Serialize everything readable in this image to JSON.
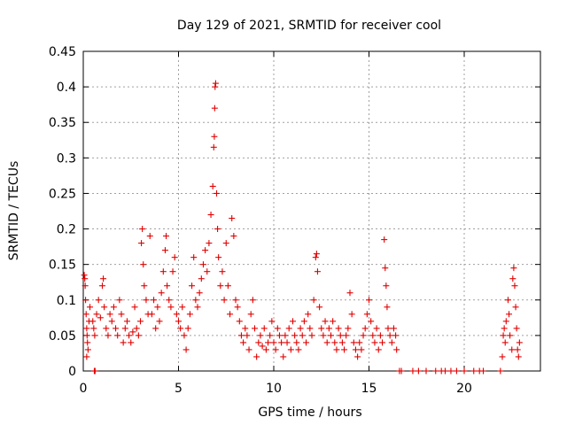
{
  "chart_data": {
    "type": "scatter",
    "title": "Day 129 of 2021, SRMTID for receiver cool",
    "xlabel": "GPS time / hours",
    "ylabel": "SRMTID / TECUs",
    "xlim": [
      0,
      24
    ],
    "ylim": [
      0,
      0.45
    ],
    "xticks": [
      0,
      5,
      10,
      15,
      20
    ],
    "xtick_labels": [
      "0",
      "5",
      "10",
      "15",
      "20"
    ],
    "yticks": [
      0,
      0.05,
      0.1,
      0.15,
      0.2,
      0.25,
      0.3,
      0.35,
      0.4,
      0.45
    ],
    "ytick_labels": [
      "0",
      "0.05",
      "0.1",
      "0.15",
      "0.2",
      "0.25",
      "0.3",
      "0.35",
      "0.4",
      "0.45"
    ],
    "grid": true,
    "marker": "+",
    "marker_color": "#e00000",
    "series": [
      {
        "name": "SRMTID",
        "points": [
          [
            0.05,
            0.135
          ],
          [
            0.08,
            0.13
          ],
          [
            0.1,
            0.12
          ],
          [
            0.12,
            0.1
          ],
          [
            0.15,
            0.08
          ],
          [
            0.18,
            0.06
          ],
          [
            0.2,
            0.05
          ],
          [
            0.22,
            0.04
          ],
          [
            0.25,
            0.03
          ],
          [
            0.18,
            0.02
          ],
          [
            0.3,
            0.07
          ],
          [
            0.35,
            0.09
          ],
          [
            0.5,
            0.07
          ],
          [
            0.55,
            0.06
          ],
          [
            0.6,
            0.05
          ],
          [
            0.58,
            0.0
          ],
          [
            0.62,
            0.0
          ],
          [
            0.7,
            0.08
          ],
          [
            0.8,
            0.1
          ],
          [
            0.9,
            0.075
          ],
          [
            1.0,
            0.12
          ],
          [
            1.05,
            0.13
          ],
          [
            1.1,
            0.09
          ],
          [
            1.2,
            0.06
          ],
          [
            1.3,
            0.05
          ],
          [
            1.4,
            0.08
          ],
          [
            1.5,
            0.07
          ],
          [
            1.6,
            0.09
          ],
          [
            1.7,
            0.06
          ],
          [
            1.8,
            0.05
          ],
          [
            1.9,
            0.1
          ],
          [
            2.0,
            0.08
          ],
          [
            2.1,
            0.04
          ],
          [
            2.2,
            0.06
          ],
          [
            2.3,
            0.07
          ],
          [
            2.4,
            0.05
          ],
          [
            2.5,
            0.04
          ],
          [
            2.6,
            0.055
          ],
          [
            2.7,
            0.09
          ],
          [
            2.8,
            0.06
          ],
          [
            2.9,
            0.05
          ],
          [
            3.0,
            0.07
          ],
          [
            3.05,
            0.18
          ],
          [
            3.1,
            0.2
          ],
          [
            3.15,
            0.15
          ],
          [
            3.2,
            0.12
          ],
          [
            3.3,
            0.1
          ],
          [
            3.4,
            0.08
          ],
          [
            3.5,
            0.19
          ],
          [
            3.6,
            0.08
          ],
          [
            3.7,
            0.1
          ],
          [
            3.8,
            0.06
          ],
          [
            3.9,
            0.09
          ],
          [
            4.0,
            0.07
          ],
          [
            4.1,
            0.11
          ],
          [
            4.2,
            0.14
          ],
          [
            4.3,
            0.17
          ],
          [
            4.35,
            0.19
          ],
          [
            4.4,
            0.12
          ],
          [
            4.5,
            0.1
          ],
          [
            4.6,
            0.09
          ],
          [
            4.7,
            0.14
          ],
          [
            4.8,
            0.16
          ],
          [
            4.9,
            0.08
          ],
          [
            5.0,
            0.07
          ],
          [
            5.1,
            0.06
          ],
          [
            5.2,
            0.09
          ],
          [
            5.3,
            0.05
          ],
          [
            5.4,
            0.03
          ],
          [
            5.5,
            0.06
          ],
          [
            5.6,
            0.08
          ],
          [
            5.7,
            0.12
          ],
          [
            5.8,
            0.16
          ],
          [
            5.9,
            0.1
          ],
          [
            6.0,
            0.09
          ],
          [
            6.1,
            0.11
          ],
          [
            6.2,
            0.13
          ],
          [
            6.3,
            0.15
          ],
          [
            6.4,
            0.17
          ],
          [
            6.5,
            0.14
          ],
          [
            6.6,
            0.18
          ],
          [
            6.7,
            0.22
          ],
          [
            6.8,
            0.26
          ],
          [
            6.85,
            0.315
          ],
          [
            6.88,
            0.33
          ],
          [
            6.9,
            0.37
          ],
          [
            6.92,
            0.4
          ],
          [
            6.95,
            0.405
          ],
          [
            7.0,
            0.25
          ],
          [
            7.05,
            0.2
          ],
          [
            7.1,
            0.16
          ],
          [
            7.2,
            0.12
          ],
          [
            7.3,
            0.14
          ],
          [
            7.4,
            0.1
          ],
          [
            7.5,
            0.18
          ],
          [
            7.6,
            0.12
          ],
          [
            7.7,
            0.08
          ],
          [
            7.8,
            0.215
          ],
          [
            7.9,
            0.19
          ],
          [
            8.0,
            0.1
          ],
          [
            8.1,
            0.09
          ],
          [
            8.2,
            0.07
          ],
          [
            8.3,
            0.05
          ],
          [
            8.4,
            0.04
          ],
          [
            8.5,
            0.06
          ],
          [
            8.6,
            0.05
          ],
          [
            8.7,
            0.03
          ],
          [
            8.8,
            0.08
          ],
          [
            8.9,
            0.1
          ],
          [
            9.0,
            0.06
          ],
          [
            9.1,
            0.02
          ],
          [
            9.2,
            0.04
          ],
          [
            9.3,
            0.05
          ],
          [
            9.4,
            0.035
          ],
          [
            9.5,
            0.06
          ],
          [
            9.6,
            0.03
          ],
          [
            9.7,
            0.04
          ],
          [
            9.8,
            0.05
          ],
          [
            9.9,
            0.07
          ],
          [
            10.0,
            0.04
          ],
          [
            10.1,
            0.03
          ],
          [
            10.2,
            0.06
          ],
          [
            10.3,
            0.05
          ],
          [
            10.4,
            0.04
          ],
          [
            10.5,
            0.02
          ],
          [
            10.6,
            0.05
          ],
          [
            10.7,
            0.04
          ],
          [
            10.8,
            0.06
          ],
          [
            10.9,
            0.03
          ],
          [
            11.0,
            0.07
          ],
          [
            11.1,
            0.05
          ],
          [
            11.2,
            0.04
          ],
          [
            11.3,
            0.03
          ],
          [
            11.4,
            0.06
          ],
          [
            11.5,
            0.05
          ],
          [
            11.6,
            0.07
          ],
          [
            11.7,
            0.04
          ],
          [
            11.8,
            0.08
          ],
          [
            11.9,
            0.06
          ],
          [
            12.0,
            0.05
          ],
          [
            12.1,
            0.1
          ],
          [
            12.2,
            0.16
          ],
          [
            12.25,
            0.165
          ],
          [
            12.3,
            0.14
          ],
          [
            12.4,
            0.09
          ],
          [
            12.5,
            0.06
          ],
          [
            12.6,
            0.05
          ],
          [
            12.7,
            0.07
          ],
          [
            12.8,
            0.04
          ],
          [
            12.9,
            0.06
          ],
          [
            13.0,
            0.05
          ],
          [
            13.1,
            0.07
          ],
          [
            13.2,
            0.04
          ],
          [
            13.3,
            0.03
          ],
          [
            13.4,
            0.06
          ],
          [
            13.5,
            0.05
          ],
          [
            13.6,
            0.04
          ],
          [
            13.7,
            0.03
          ],
          [
            13.8,
            0.05
          ],
          [
            13.9,
            0.06
          ],
          [
            14.0,
            0.11
          ],
          [
            14.1,
            0.08
          ],
          [
            14.2,
            0.04
          ],
          [
            14.3,
            0.03
          ],
          [
            14.4,
            0.02
          ],
          [
            14.5,
            0.04
          ],
          [
            14.6,
            0.03
          ],
          [
            14.7,
            0.05
          ],
          [
            14.8,
            0.06
          ],
          [
            14.9,
            0.08
          ],
          [
            15.0,
            0.1
          ],
          [
            15.1,
            0.07
          ],
          [
            15.2,
            0.05
          ],
          [
            15.3,
            0.04
          ],
          [
            15.4,
            0.06
          ],
          [
            15.5,
            0.03
          ],
          [
            15.6,
            0.05
          ],
          [
            15.7,
            0.04
          ],
          [
            15.8,
            0.185
          ],
          [
            15.85,
            0.145
          ],
          [
            15.9,
            0.12
          ],
          [
            15.95,
            0.09
          ],
          [
            16.0,
            0.06
          ],
          [
            16.1,
            0.05
          ],
          [
            16.2,
            0.04
          ],
          [
            16.3,
            0.06
          ],
          [
            16.4,
            0.05
          ],
          [
            16.45,
            0.03
          ],
          [
            16.6,
            0.0
          ],
          [
            16.7,
            0.0
          ],
          [
            17.3,
            0.0
          ],
          [
            17.6,
            0.0
          ],
          [
            18.0,
            0.0
          ],
          [
            18.5,
            0.0
          ],
          [
            18.8,
            0.0
          ],
          [
            19.0,
            0.0
          ],
          [
            19.3,
            0.0
          ],
          [
            19.6,
            0.0
          ],
          [
            20.0,
            0.0
          ],
          [
            20.5,
            0.0
          ],
          [
            20.8,
            0.0
          ],
          [
            21.0,
            0.0
          ],
          [
            21.9,
            0.0
          ],
          [
            22.0,
            0.02
          ],
          [
            22.05,
            0.05
          ],
          [
            22.1,
            0.06
          ],
          [
            22.15,
            0.04
          ],
          [
            22.2,
            0.07
          ],
          [
            22.3,
            0.1
          ],
          [
            22.35,
            0.08
          ],
          [
            22.4,
            0.05
          ],
          [
            22.5,
            0.03
          ],
          [
            22.55,
            0.13
          ],
          [
            22.6,
            0.145
          ],
          [
            22.65,
            0.12
          ],
          [
            22.7,
            0.09
          ],
          [
            22.75,
            0.06
          ],
          [
            22.8,
            0.03
          ],
          [
            22.85,
            0.02
          ],
          [
            22.9,
            0.04
          ]
        ]
      }
    ]
  }
}
